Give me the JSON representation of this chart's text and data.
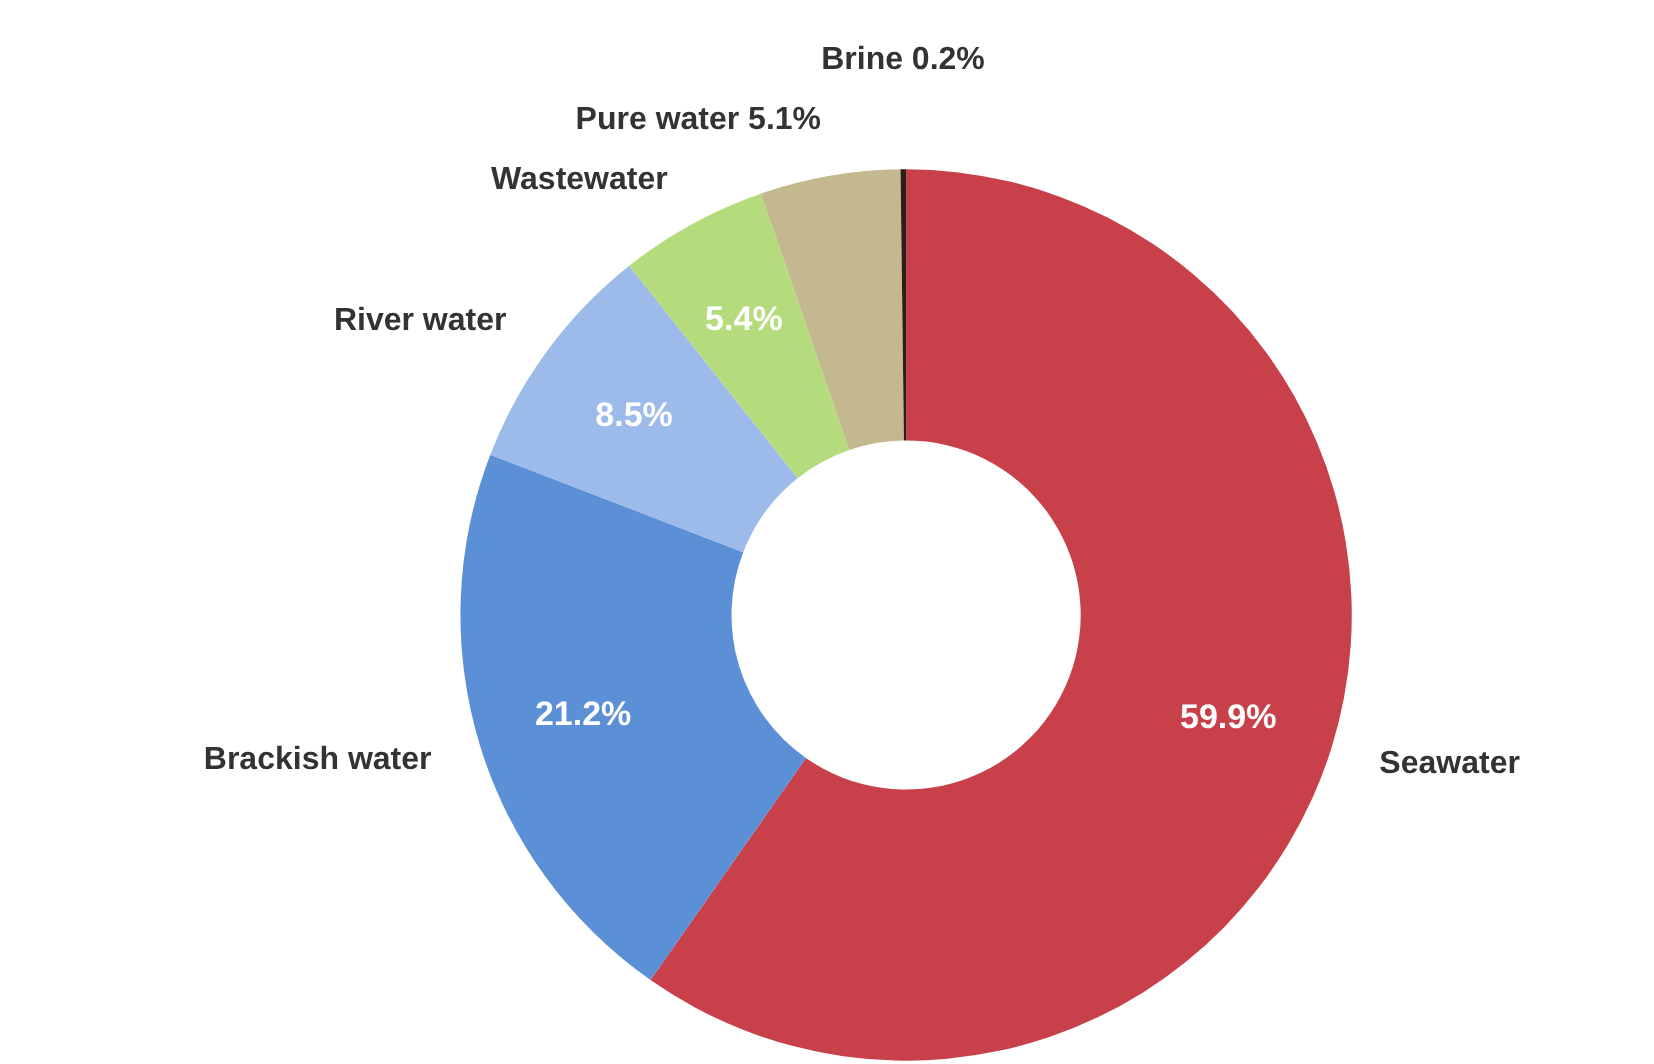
{
  "chart_data": {
    "type": "donut",
    "categories": [
      "Seawater",
      "Brackish water",
      "River water",
      "Wastewater",
      "Pure water",
      "Brine"
    ],
    "values": [
      59.9,
      21.2,
      8.5,
      5.4,
      5.1,
      0.2
    ],
    "colors": [
      "#c8404a",
      "#5b8fd6",
      "#9dbbea",
      "#b5dc7c",
      "#c4b98e",
      "#2a2018"
    ],
    "value_labels": [
      "59.9%",
      "21.2%",
      "8.5%",
      "5.4%",
      "5.1%",
      "0.2%"
    ]
  }
}
